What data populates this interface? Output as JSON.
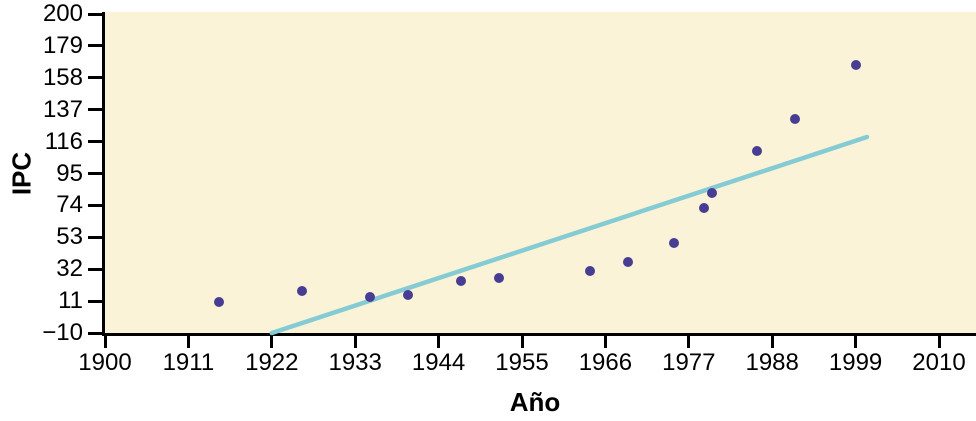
{
  "colors": {
    "plot_background": "#FBF3D8",
    "point": "#473D93",
    "trend_line": "#85CBD4",
    "axis": "#000000"
  },
  "chart_data": {
    "type": "scatter",
    "title": "",
    "xlabel": "Año",
    "ylabel": "IPC",
    "x_tick_values": [
      1900,
      1911,
      1922,
      1933,
      1944,
      1955,
      1966,
      1977,
      1988,
      1999,
      2010
    ],
    "x_tick_labels": [
      "1900",
      "1911",
      "1922",
      "1933",
      "1944",
      "1955",
      "1966",
      "1977",
      "1988",
      "1999",
      "2010"
    ],
    "y_tick_values": [
      200,
      179,
      158,
      137,
      116,
      95,
      74,
      53,
      32,
      11,
      -10
    ],
    "y_tick_labels": [
      "200",
      "179",
      "158",
      "137",
      "116",
      "95",
      "74",
      "53",
      "32",
      "11",
      "−10"
    ],
    "xlim": [
      1900,
      2014.9
    ],
    "ylim": [
      -10,
      200
    ],
    "grid": false,
    "legend": null,
    "points": [
      {
        "x": 1915,
        "y": 10.1
      },
      {
        "x": 1926,
        "y": 17.7
      },
      {
        "x": 1935,
        "y": 13.7
      },
      {
        "x": 1940,
        "y": 14.7
      },
      {
        "x": 1947,
        "y": 24.1
      },
      {
        "x": 1952,
        "y": 26.5
      },
      {
        "x": 1964,
        "y": 31.0
      },
      {
        "x": 1969,
        "y": 36.7
      },
      {
        "x": 1975,
        "y": 49.3
      },
      {
        "x": 1979,
        "y": 72.6
      },
      {
        "x": 1980,
        "y": 82.4
      },
      {
        "x": 1986,
        "y": 109.6
      },
      {
        "x": 1991,
        "y": 130.7
      },
      {
        "x": 1999,
        "y": 166.6
      }
    ],
    "trend_line": {
      "x1": 1922,
      "y1": -10,
      "x2": 2000.5,
      "y2": 119
    }
  }
}
